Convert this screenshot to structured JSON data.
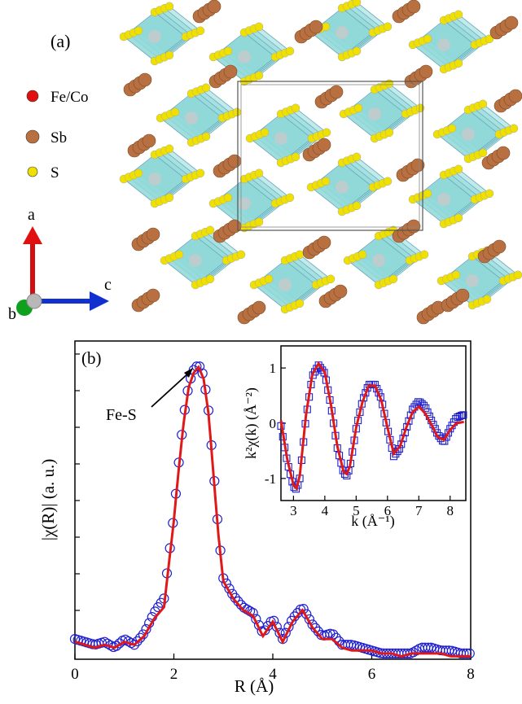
{
  "panel_a": {
    "label": "(a)",
    "legend": [
      {
        "label": "Fe/Co",
        "color": "#e01010"
      },
      {
        "label": "Sb",
        "color": "#b87040"
      },
      {
        "label": "S",
        "color": "#f0e000"
      }
    ],
    "axes": {
      "up": "a",
      "right": "c",
      "out": "b"
    },
    "colors": {
      "polyhedron": "#8fd8d8",
      "sb": "#b87040",
      "s": "#f0e000",
      "metal": "#c8c8c8"
    }
  },
  "panel_b": {
    "label": "(b)",
    "annotation": "Fe-S",
    "chart_data": [
      {
        "type": "line",
        "xlabel": "R (Å)",
        "ylabel": "|χ(R)| (a. u.)",
        "xlim": [
          0,
          8
        ],
        "xticks": [
          "0",
          "2",
          "4",
          "6",
          "8"
        ],
        "ylim": [
          0,
          1.1
        ],
        "series": [
          {
            "role": "data",
            "style": "open-circles",
            "color": "#2020d0",
            "x": [
              0,
              0.2,
              0.4,
              0.6,
              0.8,
              1.0,
              1.2,
              1.4,
              1.6,
              1.8,
              2.0,
              2.1,
              2.2,
              2.3,
              2.4,
              2.5,
              2.6,
              2.7,
              2.8,
              2.9,
              3.0,
              3.2,
              3.4,
              3.6,
              3.8,
              4.0,
              4.2,
              4.4,
              4.6,
              4.8,
              5.0,
              5.2,
              5.4,
              5.6,
              5.8,
              6.0,
              6.2,
              6.4,
              6.6,
              6.8,
              7.0,
              7.2,
              7.4,
              7.6,
              7.8,
              8.0
            ],
            "y": [
              0.07,
              0.06,
              0.05,
              0.06,
              0.04,
              0.07,
              0.05,
              0.09,
              0.16,
              0.21,
              0.5,
              0.68,
              0.84,
              0.95,
              1.0,
              1.02,
              0.98,
              0.86,
              0.66,
              0.44,
              0.28,
              0.22,
              0.18,
              0.16,
              0.09,
              0.14,
              0.07,
              0.14,
              0.18,
              0.12,
              0.08,
              0.09,
              0.05,
              0.05,
              0.04,
              0.03,
              0.02,
              0.02,
              0.02,
              0.02,
              0.04,
              0.04,
              0.03,
              0.03,
              0.02,
              0.02
            ]
          },
          {
            "role": "fit",
            "style": "line",
            "color": "#e01818",
            "x": [
              0,
              0.2,
              0.4,
              0.6,
              0.8,
              1.0,
              1.2,
              1.4,
              1.6,
              1.8,
              2.0,
              2.1,
              2.2,
              2.3,
              2.4,
              2.5,
              2.6,
              2.7,
              2.8,
              2.9,
              3.0,
              3.2,
              3.4,
              3.6,
              3.8,
              4.0,
              4.2,
              4.4,
              4.6,
              4.8,
              5.0,
              5.2,
              5.4,
              5.6,
              5.8,
              6.0,
              6.2,
              6.4,
              6.6,
              6.8,
              7.0,
              7.2,
              7.4,
              7.6,
              7.8,
              8.0
            ],
            "y": [
              0.06,
              0.05,
              0.04,
              0.05,
              0.04,
              0.06,
              0.05,
              0.08,
              0.14,
              0.18,
              0.48,
              0.66,
              0.82,
              0.94,
              0.99,
              1.01,
              0.97,
              0.85,
              0.64,
              0.43,
              0.27,
              0.21,
              0.17,
              0.15,
              0.08,
              0.13,
              0.06,
              0.13,
              0.17,
              0.11,
              0.07,
              0.07,
              0.04,
              0.03,
              0.03,
              0.03,
              0.02,
              0.02,
              0.01,
              0.02,
              0.02,
              0.02,
              0.02,
              0.01,
              0.01,
              0.01
            ]
          }
        ]
      },
      {
        "type": "line",
        "xlabel": "k (Å⁻¹)",
        "ylabel": "k²χ(k) (Å⁻²)",
        "xlim": [
          2.6,
          8.5
        ],
        "xticks": [
          "3",
          "4",
          "5",
          "6",
          "7",
          "8"
        ],
        "ylim": [
          -1.4,
          1.4
        ],
        "yticks": [
          "1",
          "0",
          "-1"
        ],
        "series": [
          {
            "role": "data",
            "style": "open-squares",
            "color": "#2020d0",
            "x": [
              2.6,
              2.8,
              3.0,
              3.1,
              3.2,
              3.4,
              3.6,
              3.8,
              4.0,
              4.2,
              4.4,
              4.6,
              4.7,
              4.8,
              5.0,
              5.2,
              5.4,
              5.6,
              5.8,
              6.0,
              6.2,
              6.4,
              6.6,
              6.8,
              7.0,
              7.2,
              7.4,
              7.6,
              7.8,
              8.0,
              8.2,
              8.4
            ],
            "y": [
              -0.05,
              -0.7,
              -1.15,
              -1.2,
              -1.0,
              0.1,
              0.85,
              1.05,
              0.9,
              0.3,
              -0.45,
              -0.9,
              -0.95,
              -0.8,
              -0.1,
              0.4,
              0.7,
              0.7,
              0.45,
              -0.1,
              -0.6,
              -0.45,
              -0.1,
              0.25,
              0.4,
              0.3,
              0.05,
              -0.2,
              -0.35,
              -0.1,
              0.1,
              0.15
            ]
          },
          {
            "role": "fit",
            "style": "line",
            "color": "#e01818",
            "x": [
              2.6,
              2.8,
              3.0,
              3.1,
              3.2,
              3.4,
              3.6,
              3.8,
              4.0,
              4.2,
              4.4,
              4.6,
              4.7,
              4.8,
              5.0,
              5.2,
              5.4,
              5.6,
              5.8,
              6.0,
              6.2,
              6.4,
              6.6,
              6.8,
              7.0,
              7.2,
              7.4,
              7.6,
              7.8,
              8.0,
              8.2,
              8.4
            ],
            "y": [
              0.05,
              -0.65,
              -1.12,
              -1.18,
              -0.95,
              0.15,
              0.88,
              1.08,
              0.92,
              0.32,
              -0.42,
              -0.88,
              -0.92,
              -0.78,
              -0.08,
              0.38,
              0.68,
              0.68,
              0.42,
              -0.08,
              -0.55,
              -0.42,
              -0.08,
              0.2,
              0.3,
              0.18,
              -0.02,
              -0.25,
              -0.3,
              -0.12,
              0.0,
              0.02
            ]
          }
        ]
      }
    ]
  }
}
